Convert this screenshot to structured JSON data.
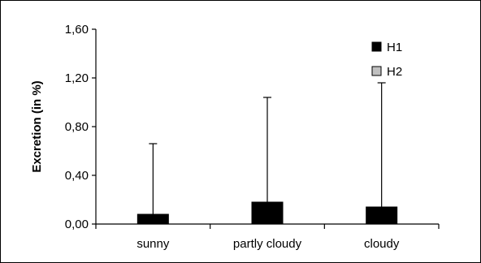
{
  "chart_data": {
    "type": "bar",
    "title": "",
    "xlabel": "",
    "ylabel": "Excretion (in %)",
    "ylim": [
      0,
      1.6
    ],
    "yticks": [
      "0,00",
      "0,40",
      "0,80",
      "1,20",
      "1,60"
    ],
    "categories": [
      "sunny",
      "partly cloudy",
      "cloudy"
    ],
    "series": [
      {
        "name": "H1",
        "color": "#000000",
        "values": [
          0.08,
          0.18,
          0.14
        ],
        "error_upper": [
          0.66,
          1.04,
          1.16
        ]
      },
      {
        "name": "H2",
        "color": "#c0c0c0",
        "values": [
          0,
          0,
          0
        ]
      }
    ],
    "legend": "top-right",
    "grid": false
  }
}
